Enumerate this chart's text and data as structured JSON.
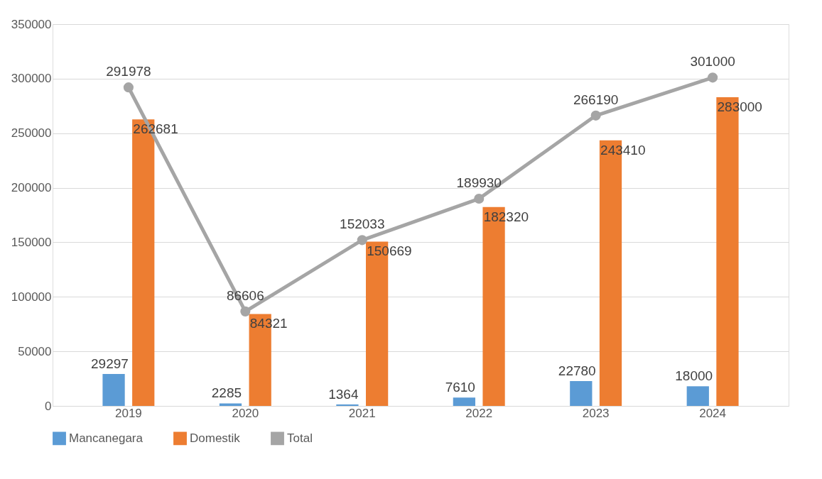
{
  "chart_data": {
    "type": "bar",
    "categories": [
      "2019",
      "2020",
      "2021",
      "2022",
      "2023",
      "2024"
    ],
    "series": [
      {
        "name": "Mancanegara",
        "color": "#5b9bd5",
        "values": [
          29297,
          2285,
          1364,
          7610,
          22780,
          18000
        ]
      },
      {
        "name": "Domestik",
        "color": "#ed7d31",
        "values": [
          262681,
          84321,
          150669,
          182320,
          243410,
          283000
        ]
      },
      {
        "name": "Total",
        "type": "line",
        "color": "#a5a5a5",
        "marker": "circle",
        "values": [
          291978,
          86606,
          152033,
          189930,
          266190,
          301000
        ]
      }
    ],
    "ylim": [
      0,
      350000
    ],
    "yticks": [
      0,
      50000,
      100000,
      150000,
      200000,
      250000,
      300000,
      350000
    ],
    "grid": "y",
    "legend": "bottom",
    "data_labels": true
  }
}
